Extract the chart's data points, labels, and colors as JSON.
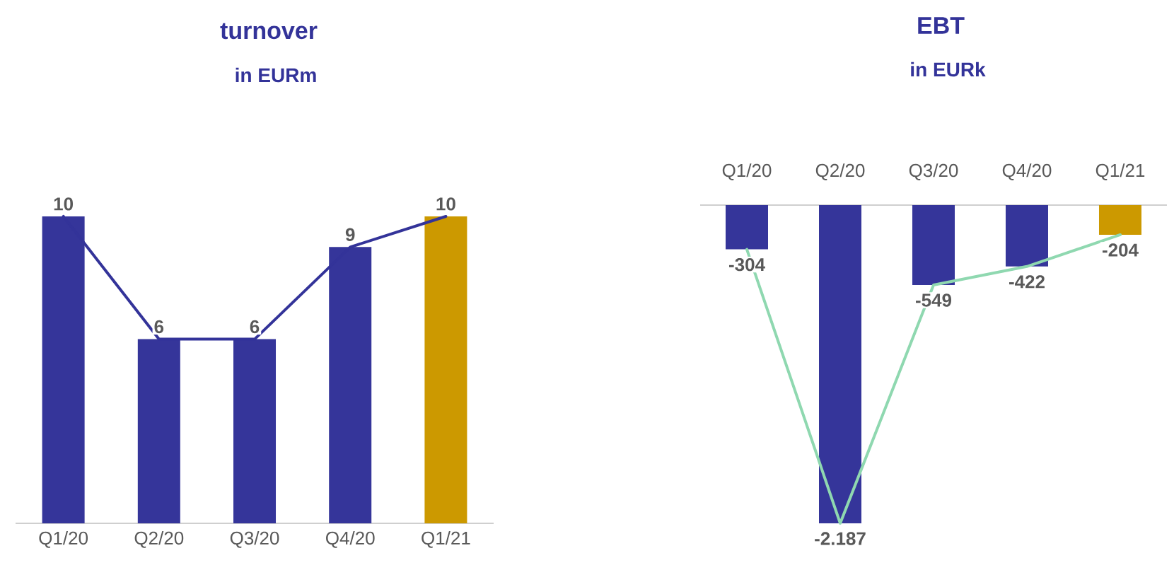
{
  "chart_data": [
    {
      "type": "bar",
      "title": "turnover",
      "subtitle": "in EURm",
      "tick_labels": "x",
      "categories": [
        "Q1/20",
        "Q2/20",
        "Q3/20",
        "Q4/20",
        "Q1/21"
      ],
      "series": [
        {
          "colors": [
            "#35359a",
            "#35359a",
            "#35359a",
            "#35359a",
            "#cc9900"
          ],
          "values": [
            10,
            6,
            6,
            9,
            10
          ],
          "value_labels": [
            "10",
            "6",
            "6",
            "9",
            "10"
          ]
        },
        {
          "type": "line",
          "color": "#333399",
          "values": [
            10,
            6,
            6,
            9,
            10
          ]
        }
      ]
    },
    {
      "type": "bar",
      "title": "EBT",
      "subtitle": "in EURk",
      "tick_labels": "x",
      "categories": [
        "Q1/20",
        "Q2/20",
        "Q3/20",
        "Q4/20",
        "Q1/21"
      ],
      "series": [
        {
          "colors": [
            "#35359a",
            "#35359a",
            "#35359a",
            "#35359a",
            "#cc9900"
          ],
          "values": [
            -304,
            -2187,
            -549,
            -422,
            -204
          ],
          "value_labels": [
            "-304",
            "-2.187",
            "-549",
            "-422",
            "-204"
          ]
        },
        {
          "type": "line",
          "color": "#8fd8b0",
          "values": [
            -304,
            -2187,
            -549,
            -422,
            -204
          ]
        }
      ]
    }
  ]
}
